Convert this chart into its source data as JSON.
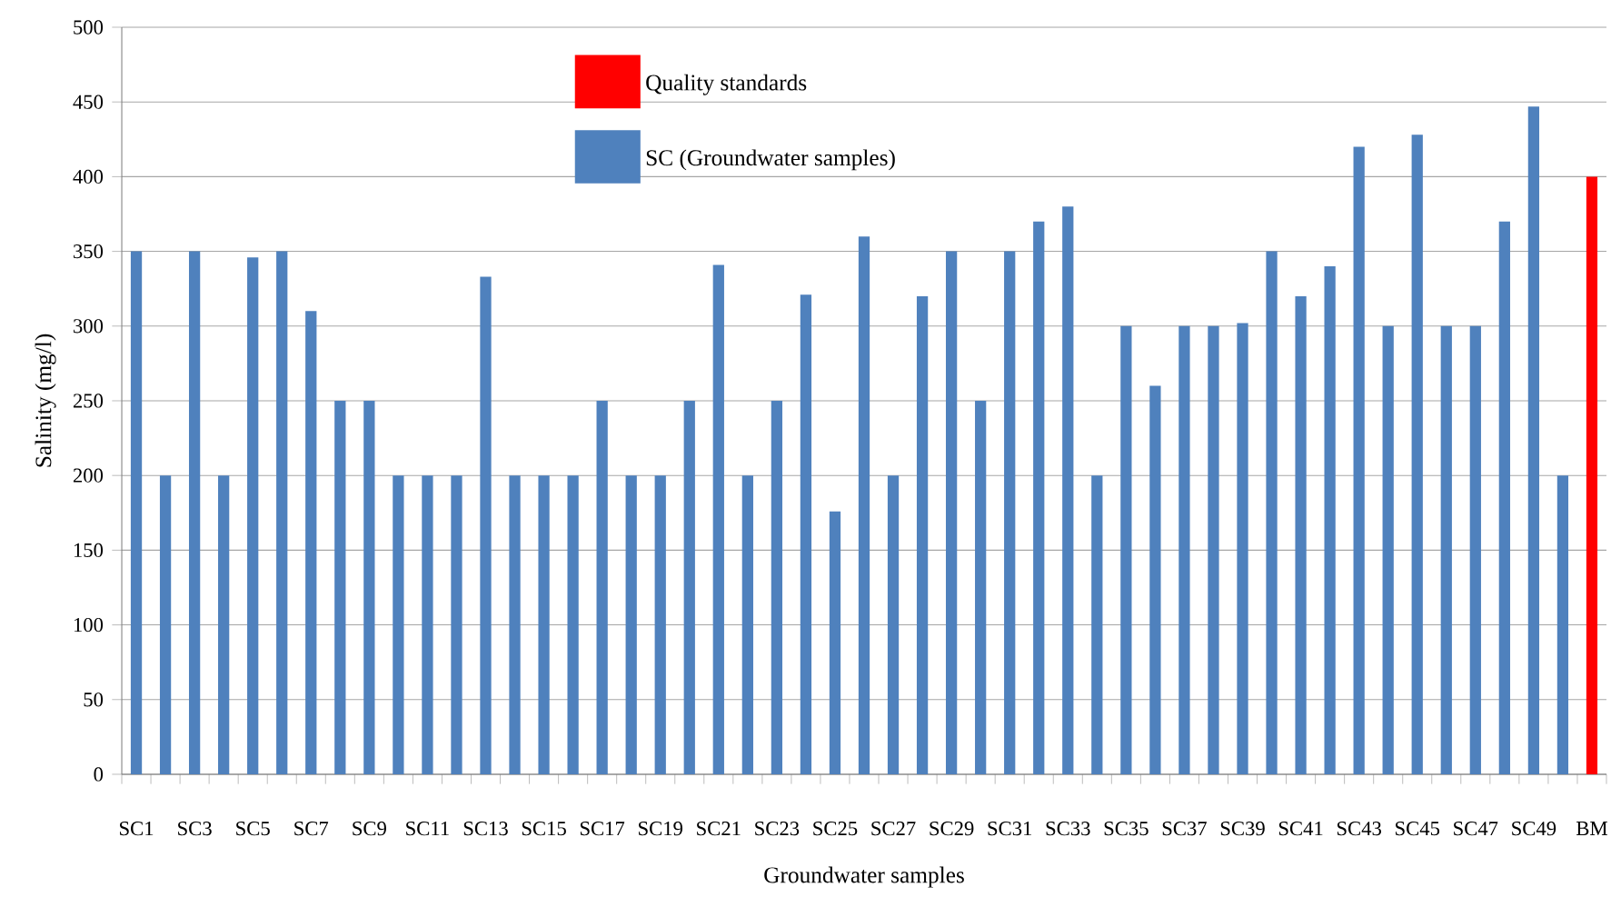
{
  "chart_data": {
    "type": "bar",
    "xlabel": "Groundwater samples",
    "ylabel": "Salinity (mg/l)",
    "categories": [
      "SC1",
      null,
      "SC3",
      null,
      "SC5",
      null,
      "SC7",
      null,
      "SC9",
      null,
      "SC11",
      null,
      "SC13",
      null,
      "SC15",
      null,
      "SC17",
      null,
      "SC19",
      null,
      "SC21",
      null,
      "SC23",
      null,
      "SC25",
      null,
      "SC27",
      null,
      "SC29",
      null,
      "SC31",
      null,
      "SC33",
      null,
      "SC35",
      null,
      "SC37",
      null,
      "SC39",
      null,
      "SC41",
      null,
      "SC43",
      null,
      "SC45",
      null,
      "SC47",
      null,
      "SC49",
      null,
      "BM"
    ],
    "series": [
      {
        "name": "Quality standards",
        "color": "#ff0000",
        "values": [
          null,
          null,
          null,
          null,
          null,
          null,
          null,
          null,
          null,
          null,
          null,
          null,
          null,
          null,
          null,
          null,
          null,
          null,
          null,
          null,
          null,
          null,
          null,
          null,
          null,
          null,
          null,
          null,
          null,
          null,
          null,
          null,
          null,
          null,
          null,
          null,
          null,
          null,
          null,
          null,
          null,
          null,
          null,
          null,
          null,
          null,
          null,
          null,
          null,
          null,
          400
        ]
      },
      {
        "name": "SC (Groundwater samples)",
        "color": "#4f81bd",
        "values": [
          350,
          200,
          350,
          200,
          346,
          350,
          310,
          250,
          250,
          200,
          200,
          200,
          333,
          200,
          200,
          200,
          250,
          200,
          200,
          250,
          341,
          200,
          250,
          321,
          176,
          360,
          200,
          320,
          350,
          250,
          350,
          370,
          380,
          200,
          300,
          260,
          300,
          300,
          302,
          350,
          320,
          340,
          420,
          300,
          428,
          300,
          300,
          370,
          447,
          200,
          null
        ]
      }
    ],
    "ylim": [
      0,
      500
    ],
    "yticks": [
      0,
      50,
      100,
      150,
      200,
      250,
      300,
      350,
      400,
      450,
      500
    ],
    "grid": "y",
    "legend": "top"
  }
}
